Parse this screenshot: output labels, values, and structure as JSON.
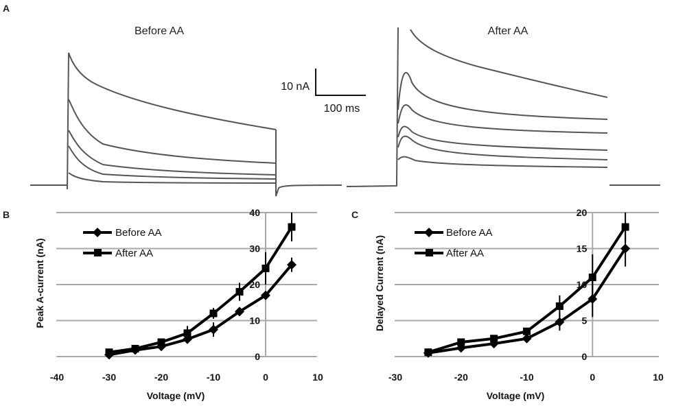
{
  "panel_labels": {
    "a": "A",
    "b": "B",
    "c": "C"
  },
  "traces": {
    "before_title": "Before AA",
    "after_title": "After AA",
    "scale_current": "10 nA",
    "scale_time": "100 ms"
  },
  "chart_data": [
    {
      "type": "line",
      "panel": "B",
      "xlabel": "Voltage (mV)",
      "ylabel": "Peak A-current (nA)",
      "xlim": [
        -40,
        10
      ],
      "ylim": [
        0,
        40
      ],
      "xticks": [
        -40,
        -30,
        -20,
        -10,
        0,
        10
      ],
      "yticks": [
        0,
        10,
        20,
        30,
        40
      ],
      "legend": "top-left",
      "series": [
        {
          "name": "Before AA",
          "marker": "diamond",
          "x": [
            -30,
            -25,
            -20,
            -15,
            -10,
            -5,
            0,
            5
          ],
          "values": [
            0.5,
            1.8,
            2.8,
            4.8,
            7.5,
            12.5,
            17,
            25.5
          ],
          "errors": [
            0.3,
            0.5,
            0.8,
            1,
            2,
            1.2,
            1,
            2
          ]
        },
        {
          "name": "After AA",
          "marker": "square",
          "x": [
            -30,
            -25,
            -20,
            -15,
            -10,
            -5,
            0,
            5
          ],
          "values": [
            1.2,
            2.2,
            4,
            6.5,
            12,
            18,
            24.5,
            36
          ],
          "errors": [
            0.3,
            0.5,
            0.8,
            2,
            1.5,
            2.5,
            4.5,
            4
          ]
        }
      ]
    },
    {
      "type": "line",
      "panel": "C",
      "xlabel": "Voltage (mV)",
      "ylabel": "Delayed Current (nA)",
      "xlim": [
        -30,
        10
      ],
      "ylim": [
        0,
        20
      ],
      "xticks": [
        -30,
        -20,
        -10,
        0,
        10
      ],
      "yticks": [
        0,
        5,
        10,
        15,
        20
      ],
      "legend": "top-left",
      "series": [
        {
          "name": "Before AA",
          "marker": "diamond",
          "x": [
            -25,
            -20,
            -15,
            -10,
            -5,
            0,
            5
          ],
          "values": [
            0.5,
            1.2,
            1.8,
            2.5,
            4.8,
            8,
            15
          ],
          "errors": [
            0.2,
            0.3,
            0.3,
            0.4,
            1.2,
            2.5,
            2.5
          ]
        },
        {
          "name": "After AA",
          "marker": "square",
          "x": [
            -25,
            -20,
            -15,
            -10,
            -5,
            0,
            5
          ],
          "values": [
            0.6,
            2,
            2.5,
            3.5,
            7,
            11,
            18
          ],
          "errors": [
            0.2,
            0.3,
            0.3,
            0.4,
            1.5,
            3.2,
            2
          ]
        }
      ]
    }
  ]
}
